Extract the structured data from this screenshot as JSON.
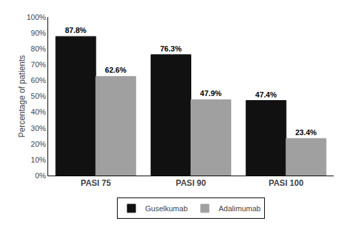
{
  "chart_data": {
    "type": "bar",
    "categories": [
      "PASI 75",
      "PASI 90",
      "PASI 100"
    ],
    "series": [
      {
        "name": "Guselkumab",
        "color": "#111111",
        "values": [
          87.8,
          76.3,
          47.4
        ],
        "value_labels": [
          "87.8%",
          "76.3%",
          "47.4%"
        ]
      },
      {
        "name": "Adalimumab",
        "color": "#a0a0a0",
        "values": [
          62.6,
          47.9,
          23.4
        ],
        "value_labels": [
          "62.6%",
          "47.9%",
          "23.4%"
        ]
      }
    ],
    "ylabel": "Percentage of patients",
    "ylim": [
      0,
      100
    ],
    "yticks": [
      {
        "value": 0,
        "label": "0%"
      },
      {
        "value": 10,
        "label": "10%"
      },
      {
        "value": 20,
        "label": "20%"
      },
      {
        "value": 30,
        "label": "30%"
      },
      {
        "value": 40,
        "label": "40%"
      },
      {
        "value": 50,
        "label": "50%"
      },
      {
        "value": 60,
        "label": "60%"
      },
      {
        "value": 70,
        "label": "70%"
      },
      {
        "value": 80,
        "label": "80%"
      },
      {
        "value": 90,
        "label": "90%"
      },
      {
        "value": 100,
        "label": "100%"
      }
    ],
    "data_labels": true,
    "grid": false,
    "legend": "bottom"
  }
}
